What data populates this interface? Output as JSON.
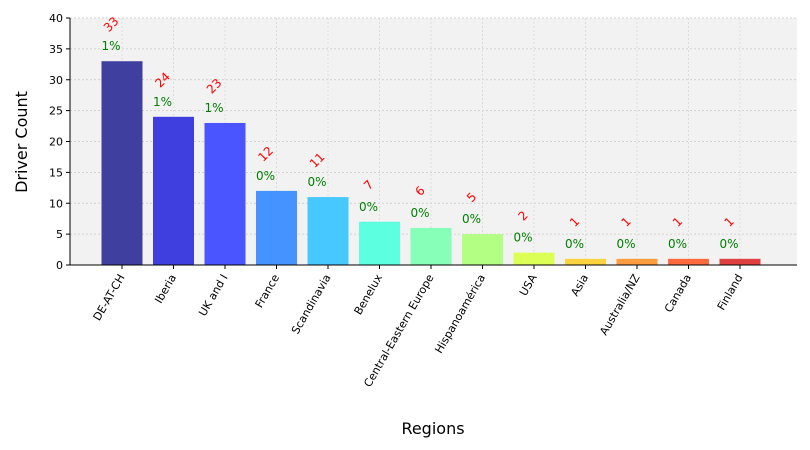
{
  "chart_data": {
    "type": "bar",
    "categories": [
      "DE-AT-CH",
      "Iberia",
      "UK and I",
      "France",
      "Scandinavia",
      "Benelux",
      "Central-Eastern Europe",
      "Hispanoamérica",
      "USA",
      "Asia",
      "Australia/NZ",
      "Canada",
      "Finland"
    ],
    "values": [
      33,
      24,
      23,
      12,
      11,
      7,
      6,
      5,
      2,
      1,
      1,
      1,
      1
    ],
    "value_labels": [
      "33",
      "24",
      "23",
      "12",
      "11",
      "7",
      "6",
      "5",
      "2",
      "1",
      "1",
      "1",
      "1"
    ],
    "percent_labels": [
      "1%",
      "1%",
      "1%",
      "0%",
      "0%",
      "0%",
      "0%",
      "0%",
      "0%",
      "0%",
      "0%",
      "0%",
      "0%"
    ],
    "bar_colors": [
      "#3f3f9f",
      "#3f3fdf",
      "#4a55ff",
      "#4593ff",
      "#47c8ff",
      "#5cffe0",
      "#88ffb8",
      "#b2ff84",
      "#dcff55",
      "#ffd23f",
      "#ff9d3f",
      "#ff6a3f",
      "#df3f3f"
    ],
    "xlabel": "Regions",
    "ylabel": "Driver Count",
    "ylim": [
      0,
      40
    ],
    "yticks": [
      0,
      5,
      10,
      15,
      20,
      25,
      30,
      35,
      40
    ],
    "grid": true,
    "value_label_color": "#ff0000",
    "percent_label_color": "#008000",
    "plot_background": "#f2f2f2"
  }
}
